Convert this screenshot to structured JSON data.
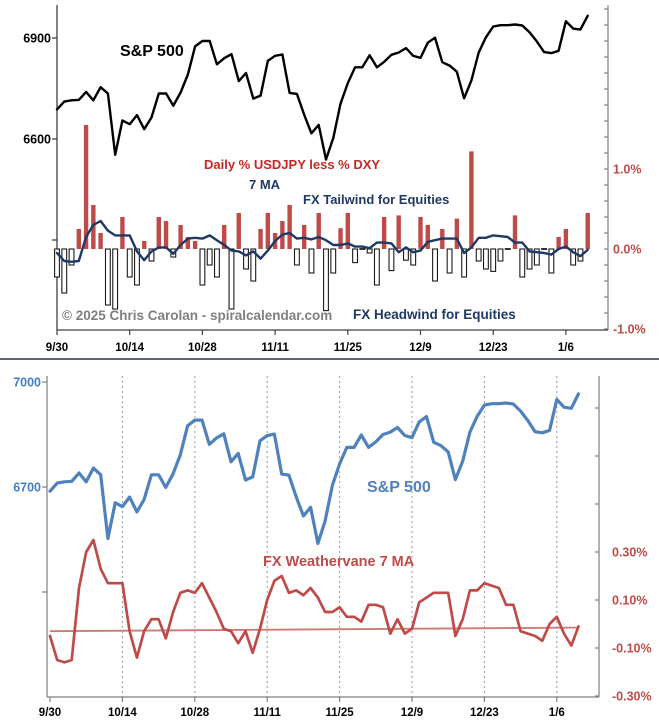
{
  "colors": {
    "sp_black": "#000000",
    "sp_blue": "#4f81bd",
    "bar_red": "#be4b48",
    "bar_neg_fill": "#ffffff",
    "bar_neg_stroke": "#1a1a1a",
    "ma_navy": "#1f3864",
    "wv_red": "#be4b48",
    "trend_red": "#cd7a76",
    "red_text": "#c22a22",
    "red_axis_text": "#be4b48",
    "blue_axis_text": "#4080c0",
    "axis_dark": "#404040",
    "axis_gray": "#808080",
    "grid_gray": "#999999",
    "copyright_gray": "#7f7f7f",
    "divider": "#5d6670"
  },
  "panel1": {
    "title": "S&P 500",
    "bar_title": "Daily % USDJPY less % DXY",
    "ma_label": "7 MA",
    "tailwind_label": "FX Tailwind for Equities",
    "headwind_label": "FX Headwind for Equities",
    "copyright": "© 2025 Chris Carolan - spiralcalendar.com"
  },
  "panel2": {
    "sp_label": "S&P 500",
    "wv_label": "FX Weathervane 7 MA"
  },
  "chart_data": [
    {
      "type": "bar",
      "subtype": "combo line + bar, dual axis",
      "title": "S&P 500 with Daily % USDJPY less % DXY and 7 MA",
      "dates": [
        "9/30",
        "10/1",
        "10/2",
        "10/3",
        "10/6",
        "10/7",
        "10/8",
        "10/9",
        "10/10",
        "10/13",
        "10/14",
        "10/15",
        "10/16",
        "10/17",
        "10/20",
        "10/21",
        "10/22",
        "10/23",
        "10/24",
        "10/27",
        "10/28",
        "10/29",
        "10/30",
        "10/31",
        "11/3",
        "11/4",
        "11/5",
        "11/6",
        "11/7",
        "11/10",
        "11/11",
        "11/12",
        "11/13",
        "11/14",
        "11/17",
        "11/18",
        "11/19",
        "11/20",
        "11/21",
        "11/24",
        "11/25",
        "11/26",
        "11/27",
        "11/28",
        "12/1",
        "12/2",
        "12/3",
        "12/4",
        "12/5",
        "12/8",
        "12/9",
        "12/10",
        "12/11",
        "12/12",
        "12/15",
        "12/16",
        "12/17",
        "12/18",
        "12/19",
        "12/22",
        "12/23",
        "12/24",
        "12/25",
        "12/26",
        "12/29",
        "12/30",
        "12/31",
        "1/1",
        "1/2",
        "1/5",
        "1/6",
        "1/7",
        "1/8",
        "1/9"
      ],
      "x_tick_indices": [
        0,
        10,
        20,
        30,
        40,
        50,
        60,
        70
      ],
      "series": [
        {
          "name": "S&P 500",
          "type": "line",
          "axis": "left",
          "values": [
            6688,
            6711,
            6715,
            6716,
            6740,
            6715,
            6754,
            6735,
            6553,
            6655,
            6644,
            6671,
            6629,
            6664,
            6735,
            6735,
            6699,
            6738,
            6792,
            6875,
            6891,
            6891,
            6822,
            6840,
            6852,
            6772,
            6796,
            6720,
            6729,
            6832,
            6847,
            6851,
            6737,
            6734,
            6672,
            6617,
            6642,
            6539,
            6603,
            6705,
            6766,
            6813,
            6813,
            6849,
            6813,
            6829,
            6850,
            6857,
            6870,
            6847,
            6841,
            6886,
            6901,
            6828,
            6818,
            6800,
            6721,
            6774,
            6857,
            6902,
            6934,
            6938,
            6938,
            6940,
            6937,
            6917,
            6890,
            6858,
            6855,
            6862,
            6950,
            6928,
            6925,
            6966
          ]
        },
        {
          "name": "Daily % USDJPY less % DXY",
          "type": "bar",
          "axis": "right",
          "values": [
            -0.35,
            -0.55,
            -0.2,
            0.25,
            1.55,
            0.55,
            0.2,
            -0.7,
            -0.75,
            0.4,
            -0.35,
            -0.45,
            0.1,
            -0.15,
            0.4,
            0.35,
            -0.1,
            0.3,
            0.15,
            0.1,
            -0.45,
            -0.2,
            -0.35,
            0.3,
            -0.75,
            0.45,
            -0.25,
            -0.4,
            0.25,
            0.45,
            0.2,
            0.35,
            0.55,
            -0.2,
            0.3,
            -0.3,
            0.45,
            -0.77,
            -0.3,
            0.26,
            0.45,
            -0.17,
            0.0,
            -0.05,
            -0.45,
            0.4,
            -0.27,
            0.42,
            -0.14,
            -0.2,
            0.4,
            0.3,
            -0.4,
            0.25,
            -0.3,
            0.38,
            -0.35,
            1.22,
            -0.15,
            -0.25,
            -0.28,
            -0.15,
            0.0,
            0.42,
            -0.35,
            -0.25,
            -0.2,
            0.0,
            -0.3,
            0.15,
            0.25,
            -0.2,
            -0.15,
            0.45
          ]
        },
        {
          "name": "7 MA",
          "type": "line",
          "axis": "right",
          "values": [
            -0.05,
            -0.15,
            -0.16,
            -0.15,
            0.15,
            0.3,
            0.35,
            0.23,
            0.17,
            0.17,
            0.17,
            -0.03,
            -0.14,
            -0.03,
            0.02,
            0.02,
            -0.06,
            0.05,
            0.13,
            0.14,
            0.13,
            0.17,
            0.11,
            0.05,
            -0.02,
            -0.03,
            -0.08,
            -0.03,
            -0.12,
            -0.02,
            0.1,
            0.18,
            0.2,
            0.13,
            0.14,
            0.12,
            0.15,
            0.11,
            0.05,
            0.05,
            0.07,
            0.03,
            0.03,
            0.01,
            0.08,
            0.08,
            0.07,
            -0.04,
            0.02,
            -0.04,
            -0.02,
            0.09,
            0.11,
            0.13,
            0.13,
            0.13,
            -0.05,
            0.02,
            0.14,
            0.14,
            0.17,
            0.16,
            0.15,
            0.08,
            0.08,
            -0.03,
            -0.04,
            -0.05,
            -0.07,
            0.0,
            0.03,
            -0.04,
            -0.09,
            -0.01
          ]
        }
      ],
      "y_left": {
        "labels": [
          "6900",
          "6600"
        ],
        "values": [
          6900,
          6600
        ],
        "unlabeled_tick_values": [
          6300
        ]
      },
      "y_right": {
        "labels": [
          "1.0%",
          "0.0%",
          "-1.0%"
        ],
        "values": [
          1.0,
          0.0,
          -1.0
        ],
        "minor_tick_step": 0.2,
        "range": [
          -1.0,
          3.0
        ]
      },
      "grid": "off",
      "legend": "none",
      "annotations": [
        "S&P 500",
        "Daily % USDJPY less % DXY",
        "7 MA",
        "FX Tailwind for Equities",
        "FX Headwind for Equities",
        "© 2025 Chris Carolan - spiralcalendar.com"
      ]
    },
    {
      "type": "line",
      "subtype": "dual axis, dashed vertical gridlines",
      "title": "S&P 500 with FX Weathervane 7 MA",
      "dates": [
        "9/30",
        "10/1",
        "10/2",
        "10/3",
        "10/6",
        "10/7",
        "10/8",
        "10/9",
        "10/10",
        "10/13",
        "10/14",
        "10/15",
        "10/16",
        "10/17",
        "10/20",
        "10/21",
        "10/22",
        "10/23",
        "10/24",
        "10/27",
        "10/28",
        "10/29",
        "10/30",
        "10/31",
        "11/3",
        "11/4",
        "11/5",
        "11/6",
        "11/7",
        "11/10",
        "11/11",
        "11/12",
        "11/13",
        "11/14",
        "11/17",
        "11/18",
        "11/19",
        "11/20",
        "11/21",
        "11/24",
        "11/25",
        "11/26",
        "11/27",
        "11/28",
        "12/1",
        "12/2",
        "12/3",
        "12/4",
        "12/5",
        "12/8",
        "12/9",
        "12/10",
        "12/11",
        "12/12",
        "12/15",
        "12/16",
        "12/17",
        "12/18",
        "12/19",
        "12/22",
        "12/23",
        "12/24",
        "12/25",
        "12/26",
        "12/29",
        "12/30",
        "12/31",
        "1/1",
        "1/2",
        "1/5",
        "1/6",
        "1/7",
        "1/8",
        "1/9"
      ],
      "x_tick_indices": [
        0,
        10,
        20,
        30,
        40,
        50,
        60,
        70
      ],
      "gridline_indices": [
        10,
        20,
        30,
        40,
        50,
        60,
        70
      ],
      "series": [
        {
          "name": "S&P 500",
          "type": "line",
          "axis": "left",
          "values": [
            6688,
            6711,
            6715,
            6716,
            6740,
            6715,
            6754,
            6735,
            6553,
            6655,
            6644,
            6671,
            6629,
            6664,
            6735,
            6735,
            6699,
            6738,
            6792,
            6875,
            6891,
            6891,
            6822,
            6840,
            6852,
            6772,
            6796,
            6720,
            6729,
            6832,
            6847,
            6851,
            6737,
            6734,
            6672,
            6617,
            6642,
            6539,
            6603,
            6705,
            6766,
            6813,
            6813,
            6849,
            6813,
            6829,
            6850,
            6857,
            6870,
            6847,
            6841,
            6886,
            6901,
            6828,
            6818,
            6800,
            6721,
            6774,
            6857,
            6902,
            6934,
            6938,
            6938,
            6940,
            6937,
            6917,
            6890,
            6858,
            6855,
            6862,
            6950,
            6928,
            6925,
            6966
          ]
        },
        {
          "name": "FX Weathervane 7 MA",
          "type": "line",
          "axis": "right",
          "values": [
            -0.05,
            -0.15,
            -0.16,
            -0.15,
            0.15,
            0.3,
            0.35,
            0.23,
            0.17,
            0.17,
            0.17,
            -0.03,
            -0.14,
            -0.03,
            0.02,
            0.02,
            -0.06,
            0.05,
            0.13,
            0.14,
            0.13,
            0.17,
            0.11,
            0.05,
            -0.02,
            -0.03,
            -0.08,
            -0.03,
            -0.12,
            -0.02,
            0.1,
            0.18,
            0.2,
            0.13,
            0.14,
            0.12,
            0.15,
            0.11,
            0.05,
            0.05,
            0.07,
            0.03,
            0.03,
            0.01,
            0.08,
            0.08,
            0.07,
            -0.04,
            0.02,
            -0.04,
            -0.02,
            0.09,
            0.11,
            0.13,
            0.13,
            0.13,
            -0.05,
            0.02,
            0.14,
            0.14,
            0.17,
            0.16,
            0.15,
            0.08,
            0.08,
            -0.03,
            -0.04,
            -0.05,
            -0.07,
            0.0,
            0.03,
            -0.04,
            -0.09,
            -0.01
          ]
        },
        {
          "name": "linear trend of FX Weathervane",
          "type": "trend",
          "axis": "right",
          "start": -0.03,
          "end": -0.015
        }
      ],
      "y_left": {
        "labels": [
          "7000",
          "6700"
        ],
        "values": [
          7000,
          6700
        ],
        "unlabeled_tick_values": [
          6400
        ]
      },
      "y_right": {
        "labels": [
          "0.30%",
          "0.10%",
          "-0.10%",
          "-0.30%"
        ],
        "values": [
          0.3,
          0.1,
          -0.1,
          -0.3
        ],
        "minor_tick_step": 0.2,
        "range": [
          -0.3,
          1.0
        ]
      },
      "grid": "vertical dashed",
      "legend": "none",
      "annotations": [
        "S&P 500",
        "FX Weathervane 7 MA"
      ]
    }
  ]
}
